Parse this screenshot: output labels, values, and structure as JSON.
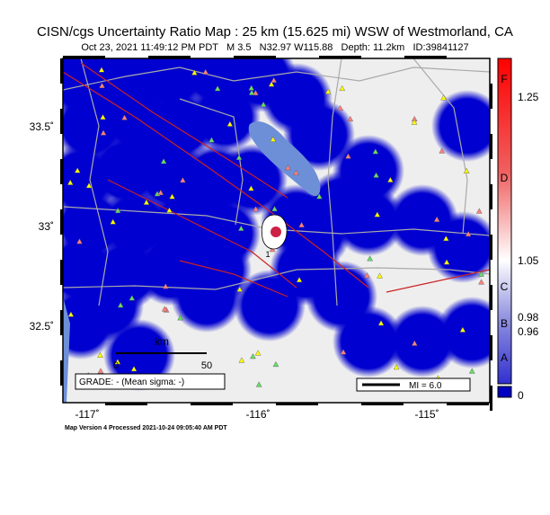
{
  "header": {
    "title": "CISN/cgs Uncertainty Ratio Map : 25 km (15.625 mi) WSW of Westmorland, CA",
    "subtitle": "Oct 23, 2021 11:49:12 PM PDT   M 3.5   N32.97 W115.88   Depth: 11.2km   ID:39841127"
  },
  "map": {
    "lat_labels": [
      "33.5˚",
      "33˚",
      "32.5˚"
    ],
    "lon_labels": [
      "-117˚",
      "-116˚",
      "-115˚"
    ],
    "scale": {
      "unit": "km",
      "start": "0",
      "end": "50"
    },
    "grade": "GRADE: - (Mean sigma: -)",
    "mi_legend": "MI = 6.0",
    "epicenter_label": "1"
  },
  "colorbar": {
    "grades": [
      "F",
      "D",
      "C",
      "B",
      "A"
    ],
    "ticks": [
      1.25,
      1.05,
      0.98,
      0.96,
      0
    ]
  },
  "footer": "Map Version 4 Processed 2021-10-24 09:05:40 AM PDT"
}
